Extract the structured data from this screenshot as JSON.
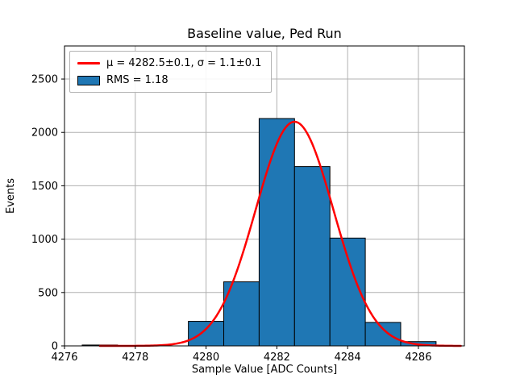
{
  "figure": {
    "background": "#ffffff"
  },
  "chart_data": {
    "type": "bar",
    "title": "Baseline value, Ped Run",
    "xlabel": "Sample Value [ADC Counts]",
    "ylabel": "Events",
    "xlim": [
      4276,
      4287.3
    ],
    "ylim": [
      0,
      2810
    ],
    "xticks": [
      4276,
      4278,
      4280,
      4282,
      4284,
      4286
    ],
    "yticks": [
      0,
      500,
      1000,
      1500,
      2000,
      2500
    ],
    "grid": true,
    "grid_color": "#b0b0b0",
    "bar_color": "#1f77b4",
    "bar_edge_color": "#000000",
    "curve_color": "#ff0000",
    "bin_width": 1,
    "bins": [
      {
        "center": 4277,
        "count": 8
      },
      {
        "center": 4278,
        "count": 0
      },
      {
        "center": 4279,
        "count": 0
      },
      {
        "center": 4280,
        "count": 230
      },
      {
        "center": 4281,
        "count": 600
      },
      {
        "center": 4282,
        "count": 2130
      },
      {
        "center": 4283,
        "count": 1680
      },
      {
        "center": 4284,
        "count": 1010
      },
      {
        "center": 4285,
        "count": 220
      },
      {
        "center": 4286,
        "count": 40
      }
    ],
    "fit": {
      "model": "gaussian",
      "amplitude": 2100,
      "mu": 4282.5,
      "sigma": 1.1,
      "x_start": 4277,
      "x_end": 4287.2
    },
    "legend": [
      {
        "sample": "line",
        "color": "#ff0000",
        "label": "μ = 4282.5±0.1, σ = 1.1±0.1"
      },
      {
        "sample": "patch",
        "color": "#1f77b4",
        "label": "RMS = 1.18"
      }
    ]
  }
}
